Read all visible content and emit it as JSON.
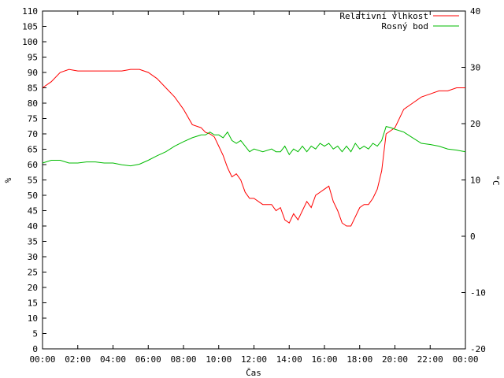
{
  "chart_data": {
    "type": "line",
    "title": "",
    "xlabel": "Čas",
    "ylabel": "%",
    "y2label": "°C",
    "xlim": [
      "00:00",
      "24:00"
    ],
    "ylim": [
      0,
      110
    ],
    "y2lim": [
      -20,
      40
    ],
    "grid": false,
    "legend_position": "top-right",
    "x_ticks": [
      "00:00",
      "02:00",
      "04:00",
      "06:00",
      "08:00",
      "10:00",
      "12:00",
      "14:00",
      "16:00",
      "18:00",
      "20:00",
      "22:00",
      "00:00"
    ],
    "y_ticks": [
      "0",
      "5",
      "10",
      "15",
      "20",
      "25",
      "30",
      "35",
      "40",
      "45",
      "50",
      "55",
      "60",
      "65",
      "70",
      "75",
      "80",
      "85",
      "90",
      "95",
      "100",
      "105",
      "110"
    ],
    "y2_ticks": [
      "-20",
      "-10",
      "0",
      "10",
      "20",
      "30",
      "40"
    ],
    "series": [
      {
        "name": "Relativní vlhkost",
        "axis": "left",
        "color": "#ff0000",
        "x": [
          0,
          0.5,
          1,
          1.5,
          2,
          2.5,
          3,
          3.5,
          4,
          4.5,
          5,
          5.5,
          6,
          6.5,
          7,
          7.5,
          8,
          8.5,
          9,
          9.25,
          9.5,
          9.75,
          10,
          10.25,
          10.5,
          10.75,
          11,
          11.25,
          11.5,
          11.75,
          12,
          12.5,
          13,
          13.25,
          13.5,
          13.75,
          14,
          14.25,
          14.5,
          14.75,
          15,
          15.25,
          15.5,
          15.75,
          16,
          16.25,
          16.5,
          16.75,
          17,
          17.25,
          17.5,
          17.75,
          18,
          18.25,
          18.5,
          18.75,
          19,
          19.25,
          19.5,
          19.75,
          20,
          20.5,
          21,
          21.5,
          22,
          22.5,
          23,
          23.5,
          24
        ],
        "values": [
          85,
          87,
          90,
          91,
          90.5,
          90.5,
          90.5,
          90.5,
          90.5,
          90.5,
          91,
          91,
          90,
          88,
          85,
          82,
          78,
          73,
          72,
          70.5,
          70,
          69,
          66,
          63,
          59,
          56,
          57,
          55,
          51,
          49,
          49,
          47,
          47,
          45,
          46,
          42,
          41,
          44,
          42,
          45,
          48,
          46,
          50,
          51,
          52,
          53,
          48,
          45,
          41,
          40,
          40,
          43,
          46,
          47,
          47,
          49,
          52,
          58,
          70,
          71,
          72,
          78,
          80,
          82,
          83,
          84,
          84,
          85,
          85
        ]
      },
      {
        "name": "Rosný bod",
        "axis": "right",
        "color": "#00bb00",
        "x": [
          0,
          0.5,
          1,
          1.5,
          2,
          2.5,
          3,
          3.5,
          4,
          4.5,
          5,
          5.5,
          6,
          6.5,
          7,
          7.5,
          8,
          8.5,
          9,
          9.25,
          9.5,
          9.75,
          10,
          10.25,
          10.5,
          10.75,
          11,
          11.25,
          11.5,
          11.75,
          12,
          12.5,
          13,
          13.25,
          13.5,
          13.75,
          14,
          14.25,
          14.5,
          14.75,
          15,
          15.25,
          15.5,
          15.75,
          16,
          16.25,
          16.5,
          16.75,
          17,
          17.25,
          17.5,
          17.75,
          18,
          18.25,
          18.5,
          18.75,
          19,
          19.25,
          19.5,
          19.75,
          20,
          20.5,
          21,
          21.5,
          22,
          22.5,
          23,
          23.5,
          24
        ],
        "values": [
          13,
          13.5,
          13.5,
          13,
          13,
          13.2,
          13.2,
          13,
          13,
          12.7,
          12.5,
          12.8,
          13.5,
          14.3,
          15,
          16,
          16.8,
          17.5,
          18,
          18,
          18.5,
          18,
          18,
          17.5,
          18.5,
          17,
          16.5,
          17,
          16,
          15,
          15.5,
          15,
          15.5,
          15,
          15,
          16,
          14.5,
          15.5,
          15,
          16,
          15,
          16,
          15.5,
          16.5,
          16,
          16.5,
          15.5,
          16,
          15,
          16,
          15,
          16.5,
          15.5,
          16,
          15.5,
          16.5,
          16,
          17,
          19.5,
          19.3,
          19,
          18.5,
          17.5,
          16.5,
          16.3,
          16,
          15.5,
          15.3,
          15
        ]
      }
    ]
  }
}
